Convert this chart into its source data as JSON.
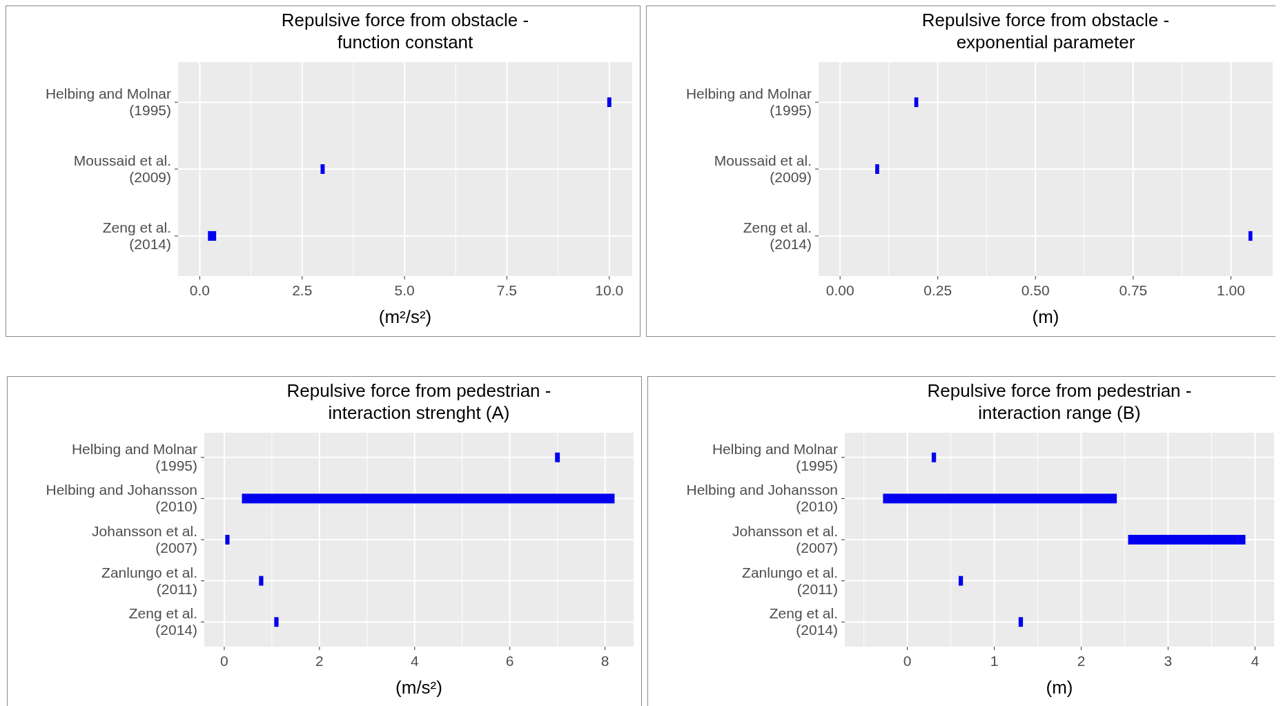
{
  "chart_data": [
    {
      "type": "bar",
      "orientation": "horizontal",
      "title": "Repulsive force from obstacle -\nfunction constant",
      "xlabel": "(m²/s²)",
      "categories": [
        "Helbing and Molnar\n(1995)",
        "Moussaid et al.\n(2009)",
        "Zeng et al.\n(2014)"
      ],
      "base": [
        9.95,
        2.95,
        0.2
      ],
      "values": [
        0.1,
        0.1,
        0.2
      ],
      "color": "#0000ee",
      "xlim": [
        -0.53,
        10.56
      ],
      "xticks": [
        {
          "value": 0,
          "label": "0.0"
        },
        {
          "value": 2.5,
          "label": "2.5"
        },
        {
          "value": 5,
          "label": "5.0"
        },
        {
          "value": 7.5,
          "label": "7.5"
        },
        {
          "value": 10,
          "label": "10.0"
        }
      ],
      "grid": true
    },
    {
      "type": "bar",
      "orientation": "horizontal",
      "title": "Repulsive force from obstacle -\nexponential parameter",
      "xlabel": "(m)",
      "categories": [
        "Helbing and Molnar\n(1995)",
        "Moussaid et al.\n(2009)",
        "Zeng et al.\n(2014)"
      ],
      "base": [
        0.19,
        0.09,
        1.045
      ],
      "values": [
        0.01,
        0.01,
        0.01
      ],
      "color": "#0000ee",
      "xlim": [
        -0.055,
        1.107
      ],
      "xticks": [
        {
          "value": 0,
          "label": "0.00"
        },
        {
          "value": 0.25,
          "label": "0.25"
        },
        {
          "value": 0.5,
          "label": "0.50"
        },
        {
          "value": 0.75,
          "label": "0.75"
        },
        {
          "value": 1,
          "label": "1.00"
        }
      ],
      "grid": true
    },
    {
      "type": "bar",
      "orientation": "horizontal",
      "title": "Repulsive force from pedestrian -\ninteraction strenght (A)",
      "xlabel": "(m/s²)",
      "categories": [
        "Helbing and Molnar\n(1995)",
        "Helbing and Johansson\n(2010)",
        "Johansson et al.\n(2007)",
        "Zanlungo et al.\n(2011)",
        "Zeng et al.\n(2014)"
      ],
      "base": [
        6.95,
        0.37,
        0.02,
        0.73,
        1.05
      ],
      "values": [
        0.1,
        7.83,
        0.09,
        0.09,
        0.09
      ],
      "color": "#0000ee",
      "xlim": [
        -0.42,
        8.6
      ],
      "xticks": [
        0,
        2,
        4,
        6,
        8
      ],
      "grid": true
    },
    {
      "type": "bar",
      "orientation": "horizontal",
      "title": "Repulsive force from pedestrian -\ninteraction range (B)",
      "xlabel": "(m)",
      "categories": [
        "Helbing and Molnar\n(1995)",
        "Helbing and Johansson\n(2010)",
        "Johansson et al.\n(2007)",
        "Zanlungo et al.\n(2011)",
        "Zeng et al.\n(2014)"
      ],
      "base": [
        0.28,
        -0.28,
        2.54,
        0.59,
        1.28
      ],
      "values": [
        0.05,
        2.69,
        1.35,
        0.05,
        0.05
      ],
      "color": "#0000ee",
      "xlim": [
        -0.72,
        4.22
      ],
      "xticks": [
        0,
        1,
        2,
        3,
        4
      ],
      "grid": true
    }
  ]
}
